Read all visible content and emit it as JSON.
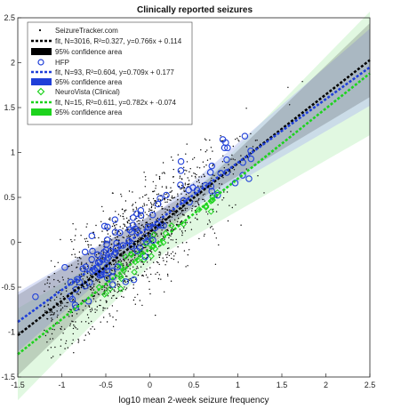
{
  "chart_data": {
    "type": "scatter",
    "title": "Clinically reported seizures",
    "xlabel": "log10 mean 2-week seizure frequency",
    "ylabel": "",
    "xlim": [
      -1.5,
      2.5
    ],
    "ylim": [
      -1.5,
      2.5
    ],
    "xticks": [
      "-1.5",
      "-1",
      "-0.5",
      "0",
      "0.5",
      "1",
      "1.5",
      "2",
      "2.5"
    ],
    "yticks": [
      "-1.5",
      "-1",
      "-0.5",
      "0",
      "0.5",
      "1",
      "1.5",
      "2",
      "2.5"
    ],
    "grid": false,
    "legend_position": "top-left",
    "legend": [
      "SeizureTracker.com",
      "fit, N=3016, R²=0.327, y=0.766x + 0.114",
      "95% confidence area",
      "HFP",
      "fit, N=93, R²=0.604, y=0.709x + 0.177",
      "95% confidence area",
      "NeuroVista (Clinical)",
      "fit, N=15, R²=0.611, y=0.782x + -0.074",
      "95% confidence area"
    ],
    "colors": {
      "seizuretracker": "#000000",
      "hfp": "#1f3fd8",
      "hfp_band": "#b9c5ee",
      "neurovista": "#1dd31d",
      "neurovista_band": "#c8f2c8"
    },
    "series": [
      {
        "name": "SeizureTracker.com",
        "marker": "dot",
        "n": 3016,
        "x_range": [
          -1.2,
          2.4
        ],
        "fit": {
          "slope": 0.766,
          "intercept": 0.114,
          "r2": 0.327
        }
      },
      {
        "name": "HFP",
        "marker": "circle",
        "n": 93,
        "x_range": [
          -0.9,
          1.2
        ],
        "fit": {
          "slope": 0.709,
          "intercept": 0.177,
          "r2": 0.604
        }
      },
      {
        "name": "NeuroVista (Clinical)",
        "marker": "diamond",
        "n": 15,
        "x_range": [
          -0.6,
          0.8
        ],
        "fit": {
          "slope": 0.782,
          "intercept": -0.074,
          "r2": 0.611
        }
      }
    ]
  }
}
